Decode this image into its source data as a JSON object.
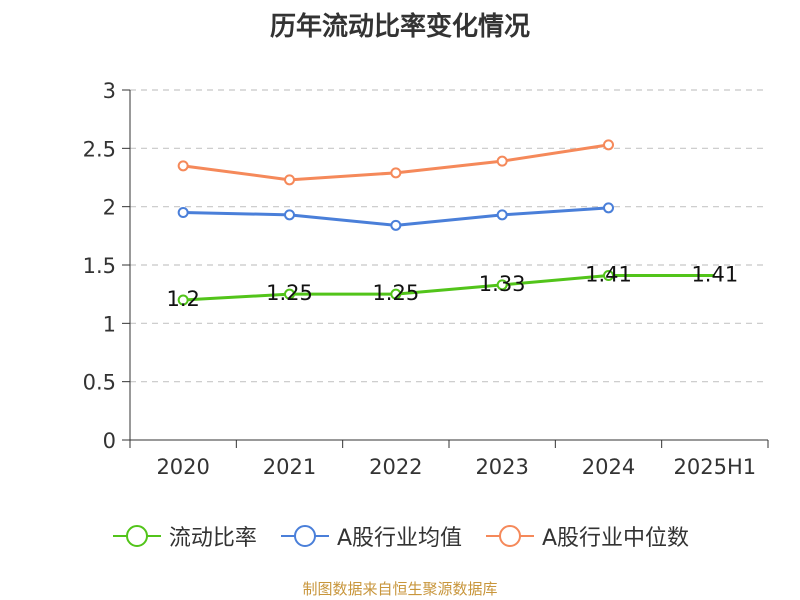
{
  "chart_data": {
    "type": "line",
    "title": "历年流动比率变化情况",
    "categories": [
      "2020",
      "2021",
      "2022",
      "2023",
      "2024",
      "2025H1"
    ],
    "ylim": [
      0,
      3
    ],
    "yticks": [
      "0",
      "0.5",
      "1",
      "1.5",
      "2",
      "2.5",
      "3"
    ],
    "grid": true,
    "legend_position": "bottom",
    "series": [
      {
        "name": "流动比率",
        "color": "#52c41a",
        "values": [
          1.2,
          1.25,
          1.25,
          1.33,
          1.41,
          1.41
        ],
        "labels": [
          "1.2",
          "1.25",
          "1.25",
          "1.33",
          "1.41",
          "1.41"
        ]
      },
      {
        "name": "A股行业均值",
        "color": "#4a7fd9",
        "values": [
          1.95,
          1.93,
          1.84,
          1.93,
          1.99,
          null
        ]
      },
      {
        "name": "A股行业中位数",
        "color": "#f5895a",
        "values": [
          2.35,
          2.23,
          2.29,
          2.39,
          2.53,
          null
        ]
      }
    ],
    "source": "制图数据来自恒生聚源数据库"
  }
}
